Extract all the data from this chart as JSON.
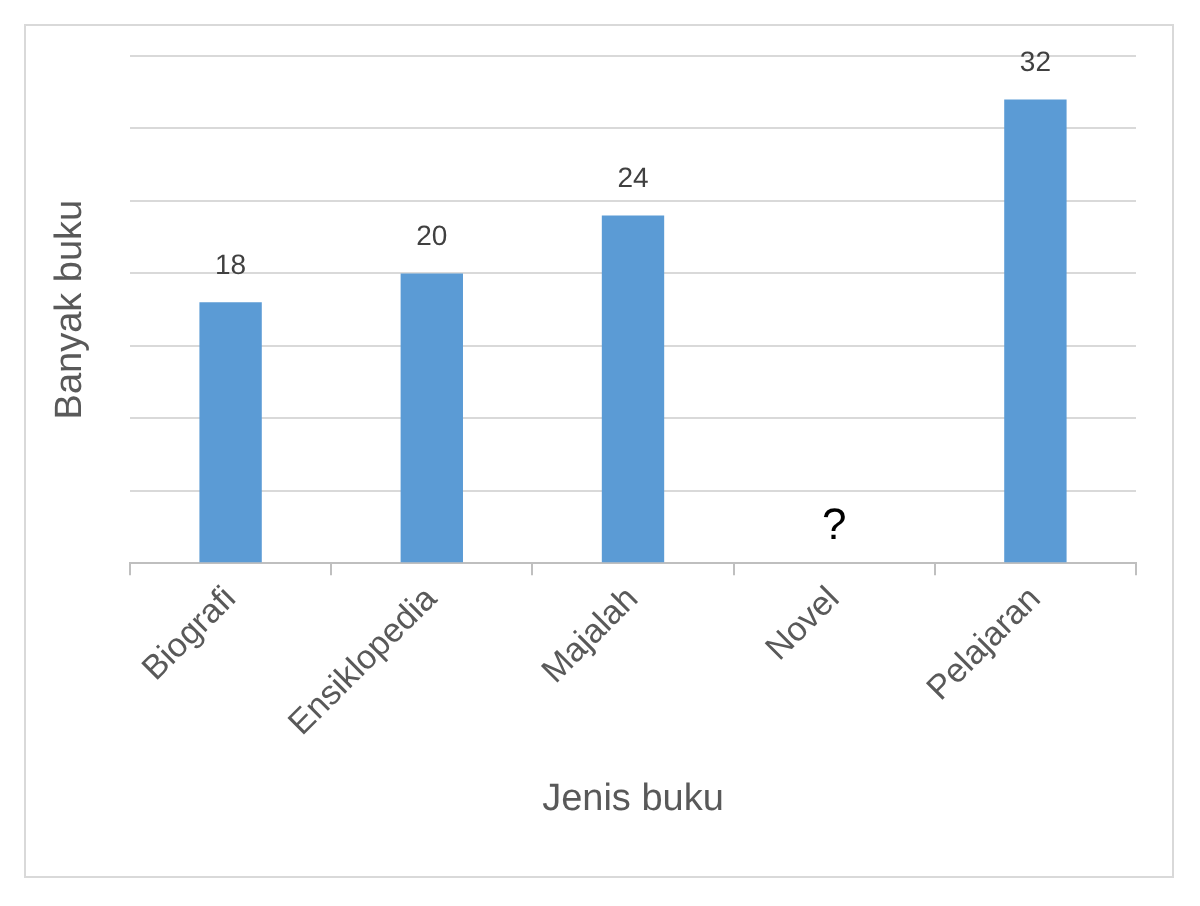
{
  "chart_data": {
    "type": "bar",
    "xlabel": "Jenis buku",
    "ylabel": "Banyak buku",
    "categories": [
      "Biografi",
      "Ensiklopedia",
      "Majalah",
      "Novel",
      "Pelajaran"
    ],
    "values": [
      18,
      20,
      24,
      null,
      32
    ],
    "value_labels": [
      "18",
      "20",
      "24",
      "?",
      "32"
    ],
    "color": "#5b9bd5",
    "ylim": [
      0,
      35
    ],
    "yticks": [
      {
        "value": 0,
        "label": null
      },
      {
        "value": 5,
        "label": null
      },
      {
        "value": 10,
        "label": null
      },
      {
        "value": 15,
        "label": null
      },
      {
        "value": 20,
        "label": null
      },
      {
        "value": 25,
        "label": null
      },
      {
        "value": 30,
        "label": null
      },
      {
        "value": 35,
        "label": null
      }
    ],
    "grid": "y",
    "legend": false,
    "tick_labels": "x"
  }
}
